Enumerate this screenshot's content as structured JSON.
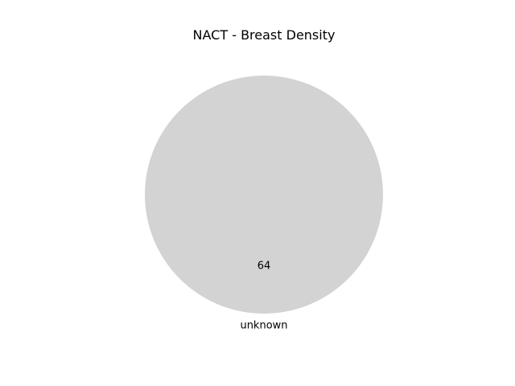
{
  "chart_data": {
    "type": "pie",
    "title": "NACT - Breast Density",
    "slices": [
      {
        "label": "unknown",
        "value": 64,
        "display": "64",
        "color": "#d3d3d3"
      }
    ]
  }
}
